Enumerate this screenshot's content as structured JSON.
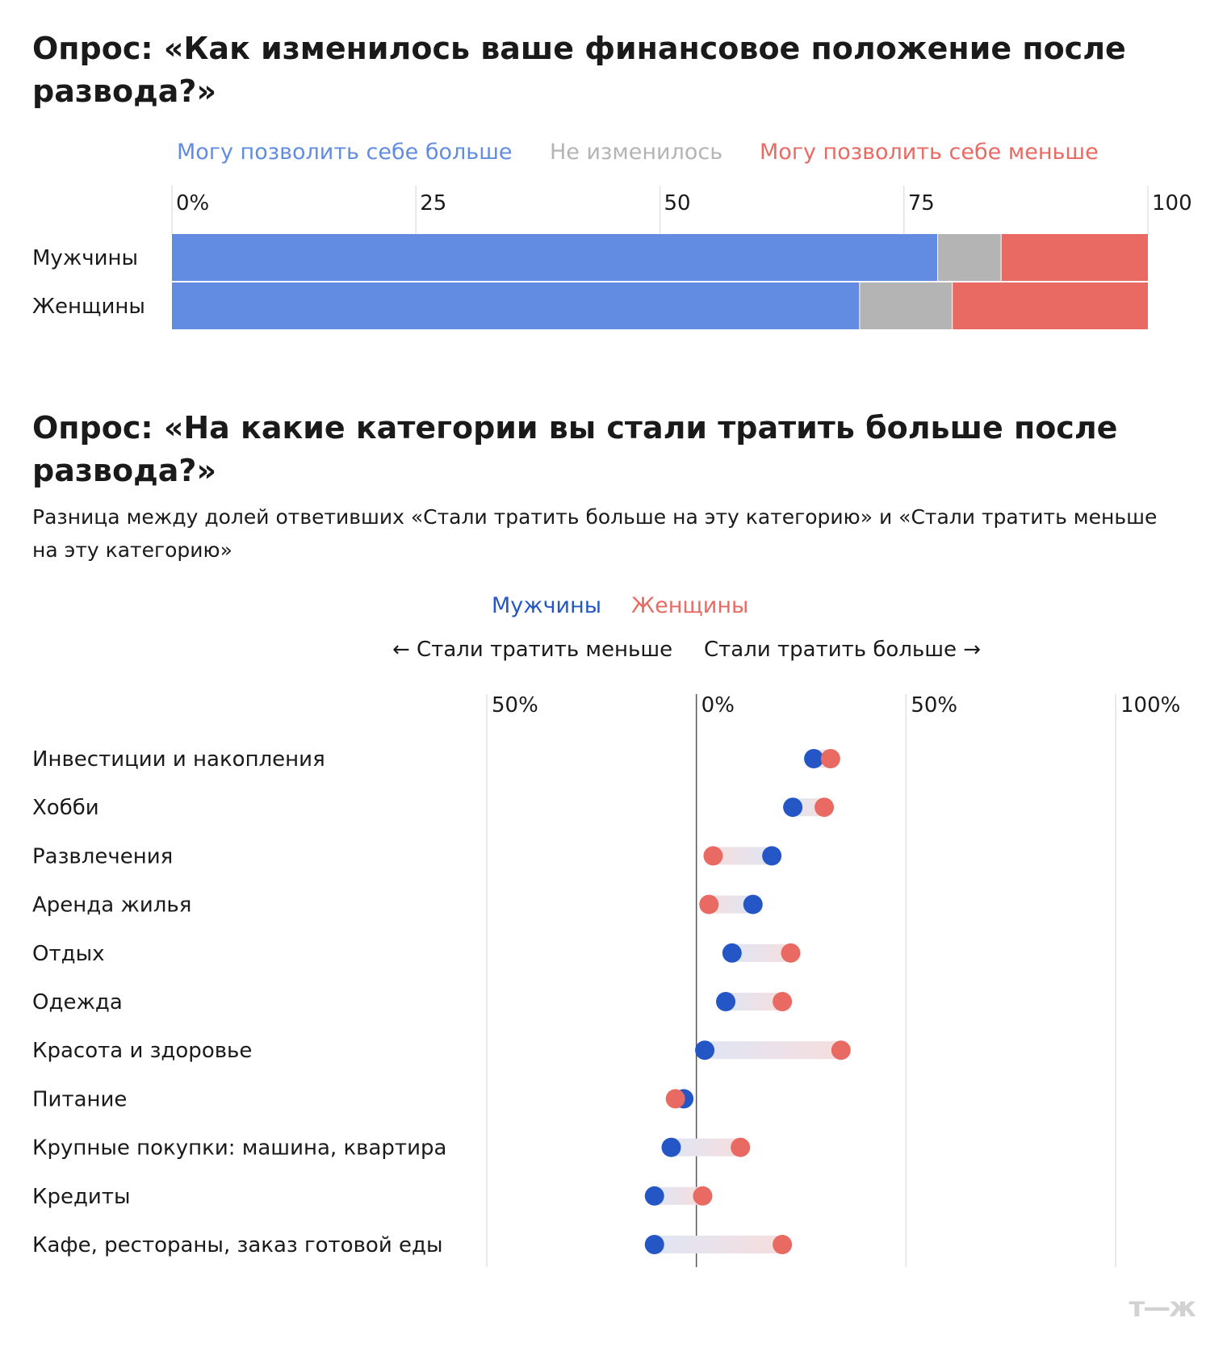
{
  "chart_data": [
    {
      "type": "bar",
      "stacked": true,
      "orientation": "horizontal",
      "title": "Опрос: «Как изменилось ваше финансовое положение после развода?»",
      "categories": [
        "Мужчины",
        "Женщины"
      ],
      "series": [
        {
          "name": "Могу позволить себе больше",
          "color": "#628ce1",
          "values": [
            78.5,
            70.5
          ]
        },
        {
          "name": "Не изменилось",
          "color": "#b4b4b4",
          "values": [
            6.5,
            9.5
          ]
        },
        {
          "name": "Могу позволить себе меньше",
          "color": "#e96a63",
          "values": [
            15,
            20
          ]
        }
      ],
      "xlim": [
        0,
        100
      ],
      "xticks": [
        "0%",
        "25",
        "50",
        "75",
        "100"
      ],
      "grid": true,
      "legend_position": "top"
    },
    {
      "type": "scatter",
      "subtype": "dumbbell",
      "title": "Опрос: «На какие категории вы стали тратить больше после развода?»",
      "subtitle": "Разница между долей ответивших «Стали тратить больше на эту категорию» и «Стали тратить меньше на эту категорию»",
      "direction_left": "← Стали тратить меньше",
      "direction_right": "Стали тратить больше →",
      "categories": [
        "Инвестиции и накопления",
        "Хобби",
        "Развлечения",
        "Аренда жилья",
        "Отдых",
        "Одежда",
        "Красота и здоровье",
        "Питание",
        "Крупные покупки: машина, квартира",
        "Кредиты",
        "Кафе, рестораны, заказ готовой еды"
      ],
      "series": [
        {
          "name": "Мужчины",
          "color": "#2457c5",
          "values": [
            28,
            23,
            18,
            13.5,
            8.5,
            7,
            2,
            -3,
            -6,
            -10,
            -10
          ]
        },
        {
          "name": "Женщины",
          "color": "#e96a63",
          "values": [
            32,
            30.5,
            4,
            3,
            22.5,
            20.5,
            34.5,
            -5,
            10.5,
            1.5,
            20.5
          ]
        }
      ],
      "xlim": [
        -50,
        100
      ],
      "xticks": [
        "50%",
        "0%",
        "50%",
        "100%"
      ],
      "grid": true,
      "legend_position": "top"
    }
  ],
  "logo": "т—ж"
}
